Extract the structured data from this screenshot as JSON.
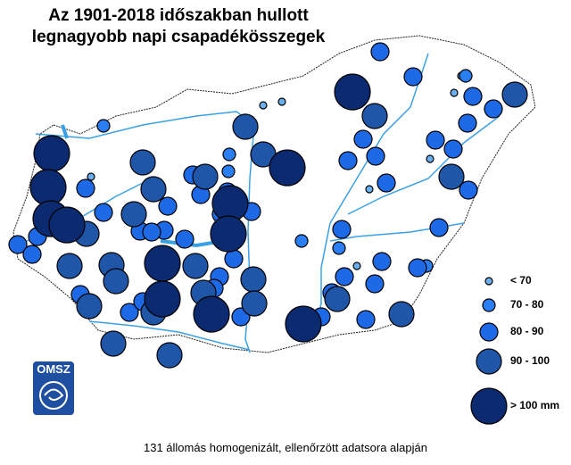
{
  "map": {
    "title": [
      "Az 1901-2018 időszakban hullott",
      "legnagyobb napi csapadékösszegek"
    ],
    "legend": [
      "< 70",
      "70 - 80",
      "80 - 90",
      "90 - 100",
      "> 100 mm"
    ],
    "footer": "131 állomás homogenizált, ellenőrzött adatsora alapján",
    "logo": "OMSZ"
  }
}
